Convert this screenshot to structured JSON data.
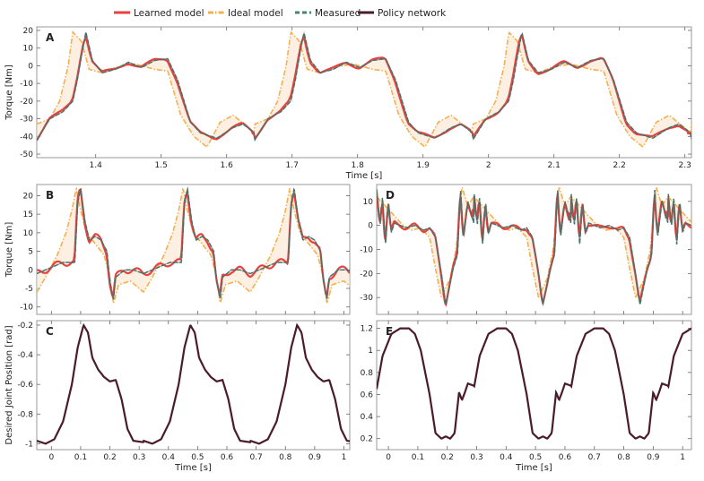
{
  "legend": [
    {
      "name": "Learned model",
      "color": "#e8423f",
      "style": "solid"
    },
    {
      "name": "Ideal model",
      "color": "#f2b150",
      "style": "dashdot"
    },
    {
      "name": "Measured",
      "color": "#3c8a7a",
      "style": "dashed"
    },
    {
      "name": "Policy network",
      "color": "#4a1b2c",
      "style": "solid"
    }
  ],
  "chart_data": [
    {
      "panel": "A",
      "type": "line",
      "xlabel": "Time [s]",
      "ylabel": "Torque [Nm]",
      "xlim": [
        1.31,
        2.31
      ],
      "ylim": [
        -52,
        22
      ],
      "xticks": [
        1.4,
        1.5,
        1.6,
        1.7,
        1.8,
        1.9,
        2.0,
        2.1,
        2.2,
        2.3
      ],
      "xtick_labels": [
        "1.4",
        "1.5",
        "1.6",
        "1.7",
        "1.8",
        "1.9",
        "2",
        "2.1",
        "2.2",
        "2.3"
      ],
      "yticks": [
        -50,
        -40,
        -30,
        -20,
        -10,
        0,
        10,
        20
      ],
      "period": 0.333,
      "x0": 1.31,
      "measured": {
        "t": [
          0,
          0.02,
          0.04,
          0.055,
          0.062,
          0.068,
          0.075,
          0.085,
          0.1,
          0.12,
          0.14,
          0.16,
          0.18,
          0.2,
          0.215,
          0.235,
          0.25,
          0.275,
          0.3,
          0.315,
          0.333
        ],
        "y": [
          -42,
          -30,
          -26,
          -20,
          -8,
          5,
          19,
          3,
          -4,
          -2,
          2,
          -1,
          3,
          4,
          -8,
          -32,
          -38,
          -41,
          -35,
          -33,
          -38
        ]
      },
      "ideal": {
        "t": [
          0,
          0.02,
          0.035,
          0.048,
          0.055,
          0.068,
          0.08,
          0.1,
          0.12,
          0.15,
          0.18,
          0.2,
          0.22,
          0.24,
          0.26,
          0.28,
          0.3,
          0.333
        ],
        "y": [
          -33,
          -30,
          -20,
          0,
          19,
          14,
          -2,
          -4,
          -1,
          1,
          -2,
          -3,
          -28,
          -40,
          -46,
          -32,
          -28,
          -38
        ]
      },
      "learned_offset": 0.06,
      "learned_series_len": 0
    },
    {
      "panel": "B",
      "type": "line",
      "xlabel": "",
      "ylabel": "Torque [Nm]",
      "xlim": [
        -0.05,
        1.02
      ],
      "ylim": [
        -12,
        23
      ],
      "yticks": [
        -10,
        -5,
        0,
        5,
        10,
        15,
        20
      ],
      "period": 0.365,
      "x0": -0.05,
      "measured": {
        "t": [
          0,
          0.03,
          0.06,
          0.09,
          0.13,
          0.14,
          0.15,
          0.165,
          0.18,
          0.2,
          0.22,
          0.24,
          0.25,
          0.262,
          0.27,
          0.3,
          0.33,
          0.365
        ],
        "y": [
          -1,
          0,
          1,
          2,
          2,
          18,
          22,
          13,
          8,
          9,
          8,
          5,
          -3,
          -8,
          -2,
          0,
          0,
          -1
        ]
      },
      "ideal": {
        "t": [
          0,
          0.03,
          0.07,
          0.1,
          0.12,
          0.135,
          0.15,
          0.17,
          0.2,
          0.23,
          0.25,
          0.262,
          0.28,
          0.32,
          0.365
        ],
        "y": [
          -6,
          -2,
          4,
          10,
          16,
          22,
          16,
          10,
          7,
          4,
          -2,
          -9,
          -4,
          -3,
          -6
        ]
      }
    },
    {
      "panel": "C",
      "type": "line",
      "xlabel": "Time [s]",
      "ylabel": "Desired Joint Position [rad]",
      "xlim": [
        -0.05,
        1.02
      ],
      "ylim": [
        -1.04,
        -0.17
      ],
      "xticks": [
        0,
        0.1,
        0.2,
        0.3,
        0.4,
        0.5,
        0.6,
        0.7,
        0.8,
        0.9,
        1.0
      ],
      "xtick_labels": [
        "0",
        "0.1",
        "0.2",
        "0.3",
        "0.4",
        "0.5",
        "0.6",
        "0.7",
        "0.8",
        "0.9",
        "1"
      ],
      "yticks": [
        -1,
        -0.8,
        -0.6,
        -0.4,
        -0.2
      ],
      "ytick_labels": [
        "-1",
        "-0.8",
        "-0.6",
        "-0.4",
        "-0.2"
      ],
      "period": 0.365,
      "x0": -0.05,
      "policy": {
        "t": [
          0,
          0.03,
          0.06,
          0.09,
          0.12,
          0.14,
          0.16,
          0.175,
          0.19,
          0.21,
          0.23,
          0.25,
          0.27,
          0.29,
          0.31,
          0.33,
          0.365
        ],
        "y": [
          -0.98,
          -1.0,
          -0.97,
          -0.85,
          -0.6,
          -0.35,
          -0.2,
          -0.25,
          -0.42,
          -0.5,
          -0.55,
          -0.58,
          -0.57,
          -0.7,
          -0.9,
          -0.98,
          -0.99
        ]
      }
    },
    {
      "panel": "D",
      "type": "line",
      "xlabel": "",
      "ylabel": "",
      "xlim": [
        -0.04,
        1.03
      ],
      "ylim": [
        -37,
        17
      ],
      "yticks": [
        -30,
        -20,
        -10,
        0,
        10
      ],
      "period": 0.33,
      "x0": -0.04,
      "measured": {
        "t": [
          0,
          0.012,
          0.02,
          0.03,
          0.04,
          0.05,
          0.06,
          0.08,
          0.1,
          0.13,
          0.16,
          0.18,
          0.2,
          0.22,
          0.235,
          0.24,
          0.25,
          0.26,
          0.275,
          0.285,
          0.295,
          0.31,
          0.33
        ],
        "y": [
          15,
          0,
          12,
          -8,
          10,
          -3,
          1,
          0,
          -1,
          0,
          -2,
          -1,
          -5,
          -20,
          -33,
          -30,
          -24,
          -18,
          -12,
          15,
          -5,
          10,
          1
        ]
      },
      "ideal": {
        "t": [
          0,
          0.03,
          0.06,
          0.09,
          0.12,
          0.15,
          0.18,
          0.2,
          0.22,
          0.25,
          0.27,
          0.29,
          0.31,
          0.33
        ],
        "y": [
          12,
          8,
          4,
          0,
          -2,
          -1,
          -5,
          -18,
          -30,
          -22,
          -10,
          16,
          8,
          12
        ]
      }
    },
    {
      "panel": "E",
      "type": "line",
      "xlabel": "Time [s]",
      "ylabel": "",
      "xlim": [
        -0.04,
        1.03
      ],
      "ylim": [
        0.1,
        1.27
      ],
      "xticks": [
        0,
        0.1,
        0.2,
        0.3,
        0.4,
        0.5,
        0.6,
        0.7,
        0.8,
        0.9,
        1.0
      ],
      "xtick_labels": [
        "0",
        "0.1",
        "0.2",
        "0.3",
        "0.4",
        "0.5",
        "0.6",
        "0.7",
        "0.8",
        "0.9",
        "1"
      ],
      "yticks": [
        0.2,
        0.4,
        0.6,
        0.8,
        1.0,
        1.2
      ],
      "ytick_labels": [
        "0.2",
        "0.4",
        "0.6",
        "0.8",
        "1",
        "1.2"
      ],
      "period": 0.33,
      "x0": -0.04,
      "policy": {
        "t": [
          0,
          0.02,
          0.05,
          0.08,
          0.11,
          0.13,
          0.15,
          0.18,
          0.2,
          0.22,
          0.235,
          0.25,
          0.265,
          0.28,
          0.29,
          0.3,
          0.31,
          0.33
        ],
        "y": [
          0.65,
          0.95,
          1.15,
          1.2,
          1.2,
          1.15,
          1.0,
          0.6,
          0.25,
          0.2,
          0.22,
          0.2,
          0.25,
          0.62,
          0.55,
          0.62,
          0.7,
          0.68
        ]
      }
    }
  ]
}
